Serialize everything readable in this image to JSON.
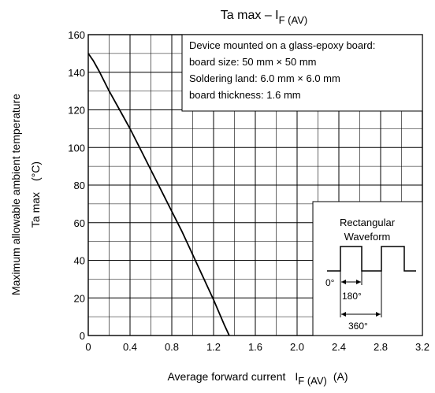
{
  "chart_data": {
    "type": "line",
    "title": {
      "main": "Ta max – I",
      "sub": "F (AV)"
    },
    "xlabel": {
      "main": "Average forward current",
      "symbol": "I",
      "sub": "F (AV)",
      "unit": "(A)"
    },
    "ylabel": {
      "line1": "Maximum allowable ambient temperature",
      "line2": "Ta max",
      "unit": "(°C)"
    },
    "xlim": [
      0,
      3.2
    ],
    "ylim": [
      0,
      160
    ],
    "x_ticks": [
      0,
      0.4,
      0.8,
      1.2,
      1.6,
      2.0,
      2.4,
      2.8,
      3.2
    ],
    "x_tick_labels": [
      "0",
      "0.4",
      "0.8",
      "1.2",
      "1.6",
      "2.0",
      "2.4",
      "2.8",
      "3.2"
    ],
    "y_ticks": [
      0,
      20,
      40,
      60,
      80,
      100,
      120,
      140,
      160
    ],
    "y_tick_labels": [
      "0",
      "20",
      "40",
      "60",
      "80",
      "100",
      "120",
      "140",
      "160"
    ],
    "minor_x_step": 0.2,
    "minor_y_step": 10,
    "grid": true,
    "series": [
      {
        "x": [
          0,
          0.05,
          0.1,
          0.2,
          0.3,
          0.4,
          0.5,
          0.6,
          0.7,
          0.8,
          0.9,
          1.0,
          1.1,
          1.2,
          1.3,
          1.35
        ],
        "y": [
          150,
          146,
          141,
          130,
          120,
          110,
          99,
          88,
          77,
          66,
          55,
          43,
          31,
          19,
          6,
          0
        ]
      }
    ],
    "annotation": {
      "lines": [
        "Device mounted on a glass-epoxy board:",
        "board size: 50 mm × 50 mm",
        "Soldering land: 6.0 mm × 6.0 mm",
        "board thickness: 1.6 mm"
      ]
    },
    "inset": {
      "title_line1": "Rectangular",
      "title_line2": "Waveform",
      "label_0": "0°",
      "label_180": "180°",
      "label_360": "360°"
    }
  }
}
